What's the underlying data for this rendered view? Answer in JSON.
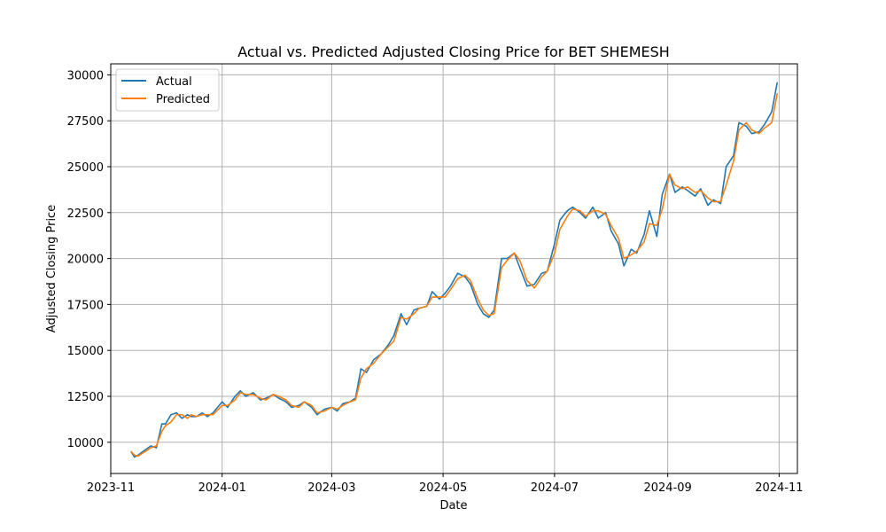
{
  "chart_data": {
    "type": "line",
    "title": "Actual vs. Predicted Adjusted Closing Price for BET SHEMESH",
    "xlabel": "Date",
    "ylabel": "Adjusted Closing Price",
    "x_axis": "date",
    "xlim": [
      "2023-11-01",
      "2024-11-11"
    ],
    "ylim": [
      8300,
      30600
    ],
    "x_ticks": [
      "2023-11",
      "2024-01",
      "2024-03",
      "2024-05",
      "2024-07",
      "2024-09",
      "2024-11"
    ],
    "x_tick_labels": [
      "2023-11",
      "2024-01",
      "2024-03",
      "2024-05",
      "2024-07",
      "2024-09",
      "2024-11"
    ],
    "y_ticks": [
      10000,
      12500,
      15000,
      17500,
      20000,
      22500,
      25000,
      27500,
      30000
    ],
    "y_tick_labels": [
      "10000",
      "12500",
      "15000",
      "17500",
      "20000",
      "22500",
      "25000",
      "27500",
      "30000"
    ],
    "grid": true,
    "legend": "top-left",
    "series": [
      {
        "name": "Actual",
        "color": "#1f77b4",
        "x": [
          "2023-11-12",
          "2023-11-14",
          "2023-11-16",
          "2023-11-20",
          "2023-11-23",
          "2023-11-26",
          "2023-11-29",
          "2023-12-01",
          "2023-12-04",
          "2023-12-07",
          "2023-12-10",
          "2023-12-13",
          "2023-12-15",
          "2023-12-18",
          "2023-12-21",
          "2023-12-24",
          "2023-12-27",
          "2024-01-01",
          "2024-01-04",
          "2024-01-08",
          "2024-01-11",
          "2024-01-14",
          "2024-01-18",
          "2024-01-22",
          "2024-01-25",
          "2024-01-29",
          "2024-02-01",
          "2024-02-05",
          "2024-02-08",
          "2024-02-12",
          "2024-02-15",
          "2024-02-19",
          "2024-02-22",
          "2024-02-26",
          "2024-03-01",
          "2024-03-04",
          "2024-03-07",
          "2024-03-11",
          "2024-03-14",
          "2024-03-17",
          "2024-03-20",
          "2024-03-24",
          "2024-03-28",
          "2024-04-01",
          "2024-04-04",
          "2024-04-08",
          "2024-04-11",
          "2024-04-15",
          "2024-04-18",
          "2024-04-22",
          "2024-04-25",
          "2024-04-29",
          "2024-05-02",
          "2024-05-05",
          "2024-05-09",
          "2024-05-13",
          "2024-05-16",
          "2024-05-20",
          "2024-05-23",
          "2024-05-26",
          "2024-05-29",
          "2024-06-02",
          "2024-06-05",
          "2024-06-09",
          "2024-06-12",
          "2024-06-16",
          "2024-06-20",
          "2024-06-24",
          "2024-06-27",
          "2024-07-01",
          "2024-07-04",
          "2024-07-08",
          "2024-07-11",
          "2024-07-15",
          "2024-07-18",
          "2024-07-22",
          "2024-07-25",
          "2024-07-29",
          "2024-08-01",
          "2024-08-05",
          "2024-08-08",
          "2024-08-12",
          "2024-08-15",
          "2024-08-19",
          "2024-08-22",
          "2024-08-26",
          "2024-08-29",
          "2024-09-02",
          "2024-09-05",
          "2024-09-09",
          "2024-09-12",
          "2024-09-16",
          "2024-09-19",
          "2024-09-23",
          "2024-09-26",
          "2024-09-30",
          "2024-10-03",
          "2024-10-07",
          "2024-10-10",
          "2024-10-14",
          "2024-10-17",
          "2024-10-21",
          "2024-10-24",
          "2024-10-28",
          "2024-10-31"
        ],
        "values": [
          9500,
          9200,
          9300,
          9600,
          9800,
          9700,
          11000,
          11000,
          11500,
          11600,
          11300,
          11500,
          11400,
          11400,
          11600,
          11400,
          11600,
          12200,
          11900,
          12500,
          12800,
          12500,
          12700,
          12300,
          12400,
          12600,
          12400,
          12200,
          11900,
          12000,
          12200,
          11900,
          11500,
          11800,
          11900,
          11700,
          12100,
          12200,
          12400,
          14000,
          13800,
          14500,
          14800,
          15300,
          15800,
          17000,
          16400,
          17200,
          17300,
          17400,
          18200,
          17800,
          18100,
          18500,
          19200,
          19000,
          18600,
          17500,
          17000,
          16800,
          17200,
          20000,
          20000,
          20300,
          19500,
          18500,
          18600,
          19200,
          19300,
          20800,
          22100,
          22600,
          22800,
          22500,
          22200,
          22800,
          22200,
          22500,
          21500,
          20800,
          19600,
          20500,
          20300,
          21300,
          22600,
          21200,
          23500,
          24600,
          23600,
          23900,
          23700,
          23400,
          23800,
          22900,
          23200,
          23000,
          25000,
          25600,
          27400,
          27200,
          26800,
          26900,
          27300,
          28000,
          29600
        ]
      },
      {
        "name": "Predicted",
        "color": "#ff7f0e",
        "x": [
          "2023-11-12",
          "2023-11-14",
          "2023-11-16",
          "2023-11-20",
          "2023-11-23",
          "2023-11-26",
          "2023-11-29",
          "2023-12-01",
          "2023-12-04",
          "2023-12-07",
          "2023-12-10",
          "2023-12-13",
          "2023-12-15",
          "2023-12-18",
          "2023-12-21",
          "2023-12-24",
          "2023-12-27",
          "2024-01-01",
          "2024-01-04",
          "2024-01-08",
          "2024-01-11",
          "2024-01-14",
          "2024-01-18",
          "2024-01-22",
          "2024-01-25",
          "2024-01-29",
          "2024-02-01",
          "2024-02-05",
          "2024-02-08",
          "2024-02-12",
          "2024-02-15",
          "2024-02-19",
          "2024-02-22",
          "2024-02-26",
          "2024-03-01",
          "2024-03-04",
          "2024-03-07",
          "2024-03-11",
          "2024-03-14",
          "2024-03-17",
          "2024-03-20",
          "2024-03-24",
          "2024-03-28",
          "2024-04-01",
          "2024-04-04",
          "2024-04-08",
          "2024-04-11",
          "2024-04-15",
          "2024-04-18",
          "2024-04-22",
          "2024-04-25",
          "2024-04-29",
          "2024-05-02",
          "2024-05-05",
          "2024-05-09",
          "2024-05-13",
          "2024-05-16",
          "2024-05-20",
          "2024-05-23",
          "2024-05-26",
          "2024-05-29",
          "2024-06-02",
          "2024-06-05",
          "2024-06-09",
          "2024-06-12",
          "2024-06-16",
          "2024-06-20",
          "2024-06-24",
          "2024-06-27",
          "2024-07-01",
          "2024-07-04",
          "2024-07-08",
          "2024-07-11",
          "2024-07-15",
          "2024-07-18",
          "2024-07-22",
          "2024-07-25",
          "2024-07-29",
          "2024-08-01",
          "2024-08-05",
          "2024-08-08",
          "2024-08-12",
          "2024-08-15",
          "2024-08-19",
          "2024-08-22",
          "2024-08-26",
          "2024-08-29",
          "2024-09-02",
          "2024-09-05",
          "2024-09-09",
          "2024-09-12",
          "2024-09-16",
          "2024-09-19",
          "2024-09-23",
          "2024-09-26",
          "2024-09-30",
          "2024-10-03",
          "2024-10-07",
          "2024-10-10",
          "2024-10-14",
          "2024-10-17",
          "2024-10-21",
          "2024-10-24",
          "2024-10-28",
          "2024-10-31"
        ],
        "values": [
          9500,
          9300,
          9250,
          9500,
          9700,
          9800,
          10600,
          10900,
          11100,
          11500,
          11500,
          11300,
          11500,
          11400,
          11500,
          11500,
          11500,
          12000,
          12000,
          12300,
          12700,
          12600,
          12600,
          12400,
          12300,
          12600,
          12500,
          12300,
          12000,
          11900,
          12200,
          12000,
          11600,
          11700,
          11900,
          11800,
          12000,
          12200,
          12300,
          13500,
          14000,
          14300,
          14800,
          15200,
          15500,
          16800,
          16700,
          17000,
          17300,
          17400,
          17900,
          17900,
          17900,
          18300,
          18900,
          19100,
          18800,
          17800,
          17200,
          16900,
          17000,
          19500,
          19900,
          20300,
          19900,
          18800,
          18400,
          19000,
          19300,
          20300,
          21600,
          22300,
          22700,
          22600,
          22300,
          22600,
          22600,
          22400,
          21800,
          21100,
          20000,
          20200,
          20400,
          20900,
          21900,
          21800,
          22700,
          24600,
          24000,
          23800,
          23900,
          23600,
          23700,
          23300,
          23100,
          23100,
          24000,
          25300,
          27000,
          27400,
          27000,
          26800,
          27100,
          27400,
          29000
        ]
      }
    ]
  }
}
